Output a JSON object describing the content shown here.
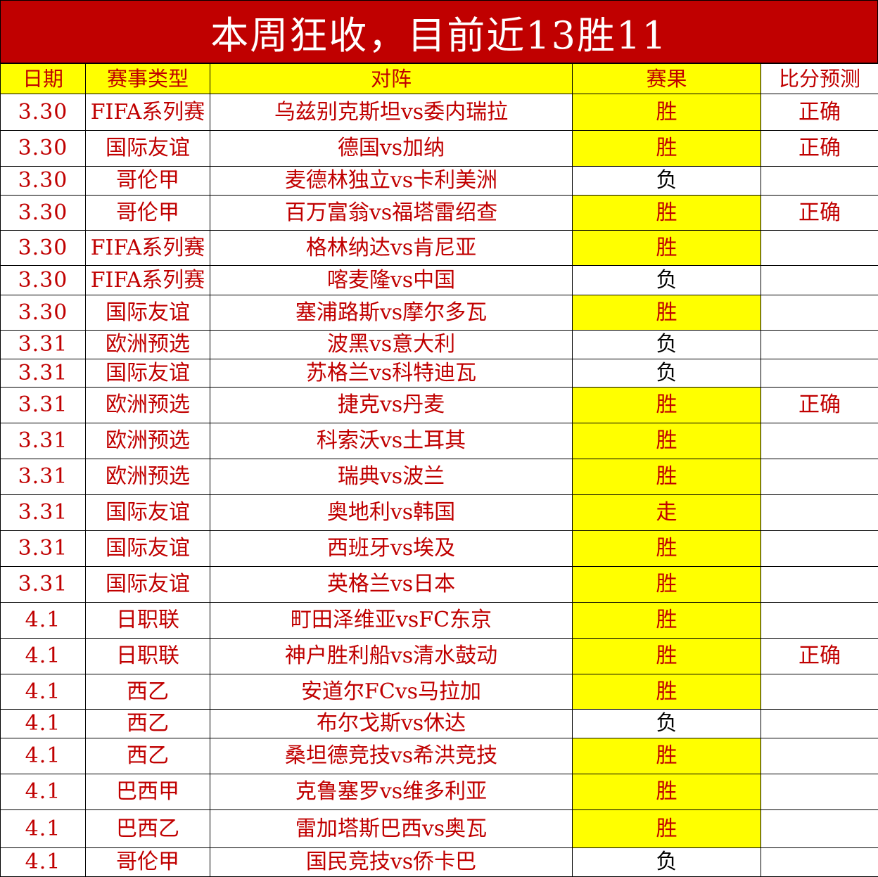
{
  "title": "本周狂收，目前近13胜11",
  "colors": {
    "title_bg": "#C00000",
    "header_bg": "#FFFF00",
    "text": "#C00000",
    "highlight": "#FFFF00"
  },
  "columns": [
    "日期",
    "赛事类型",
    "对阵",
    "赛果",
    "比分预测"
  ],
  "rows": [
    {
      "date": "3.30",
      "league": "FIFA系列赛",
      "match": "乌兹别克斯坦vs委内瑞拉",
      "result": "胜",
      "score": "正确"
    },
    {
      "date": "3.30",
      "league": "国际友谊",
      "match": "德国vs加纳",
      "result": "胜",
      "score": "正确"
    },
    {
      "date": "3.30",
      "league": "哥伦甲",
      "match": "麦德林独立vs卡利美洲",
      "result": "负",
      "score": ""
    },
    {
      "date": "3.30",
      "league": "哥伦甲",
      "match": "百万富翁vs福塔雷绍查",
      "result": "胜",
      "score": "正确"
    },
    {
      "date": "3.30",
      "league": "FIFA系列赛",
      "match": "格林纳达vs肯尼亚",
      "result": "胜",
      "score": ""
    },
    {
      "date": "3.30",
      "league": "FIFA系列赛",
      "match": "喀麦隆vs中国",
      "result": "负",
      "score": ""
    },
    {
      "date": "3.30",
      "league": "国际友谊",
      "match": "塞浦路斯vs摩尔多瓦",
      "result": "胜",
      "score": ""
    },
    {
      "date": "3.31",
      "league": "欧洲预选",
      "match": "波黑vs意大利",
      "result": "负",
      "score": ""
    },
    {
      "date": "3.31",
      "league": "国际友谊",
      "match": "苏格兰vs科特迪瓦",
      "result": "负",
      "score": ""
    },
    {
      "date": "3.31",
      "league": "欧洲预选",
      "match": "捷克vs丹麦",
      "result": "胜",
      "score": "正确"
    },
    {
      "date": "3.31",
      "league": "欧洲预选",
      "match": "科索沃vs土耳其",
      "result": "胜",
      "score": ""
    },
    {
      "date": "3.31",
      "league": "欧洲预选",
      "match": "瑞典vs波兰",
      "result": "胜",
      "score": ""
    },
    {
      "date": "3.31",
      "league": "国际友谊",
      "match": "奥地利vs韩国",
      "result": "走",
      "score": ""
    },
    {
      "date": "3.31",
      "league": "国际友谊",
      "match": "西班牙vs埃及",
      "result": "胜",
      "score": ""
    },
    {
      "date": "3.31",
      "league": "国际友谊",
      "match": "英格兰vs日本",
      "result": "胜",
      "score": ""
    },
    {
      "date": "4.1",
      "league": "日职联",
      "match": "町田泽维亚vsFC东京",
      "result": "胜",
      "score": ""
    },
    {
      "date": "4.1",
      "league": "日职联",
      "match": "神户胜利船vs清水鼓动",
      "result": "胜",
      "score": "正确"
    },
    {
      "date": "4.1",
      "league": "西乙",
      "match": "安道尔FCvs马拉加",
      "result": "胜",
      "score": ""
    },
    {
      "date": "4.1",
      "league": "西乙",
      "match": "布尔戈斯vs休达",
      "result": "负",
      "score": ""
    },
    {
      "date": "4.1",
      "league": "西乙",
      "match": "桑坦德竞技vs希洪竞技",
      "result": "胜",
      "score": ""
    },
    {
      "date": "4.1",
      "league": "巴西甲",
      "match": "克鲁塞罗vs维多利亚",
      "result": "胜",
      "score": ""
    },
    {
      "date": "4.1",
      "league": "巴西乙",
      "match": "雷加塔斯巴西vs奥瓦",
      "result": "胜",
      "score": ""
    },
    {
      "date": "4.1",
      "league": "哥伦甲",
      "match": "国民竞技vs侨卡巴",
      "result": "负",
      "score": ""
    }
  ]
}
